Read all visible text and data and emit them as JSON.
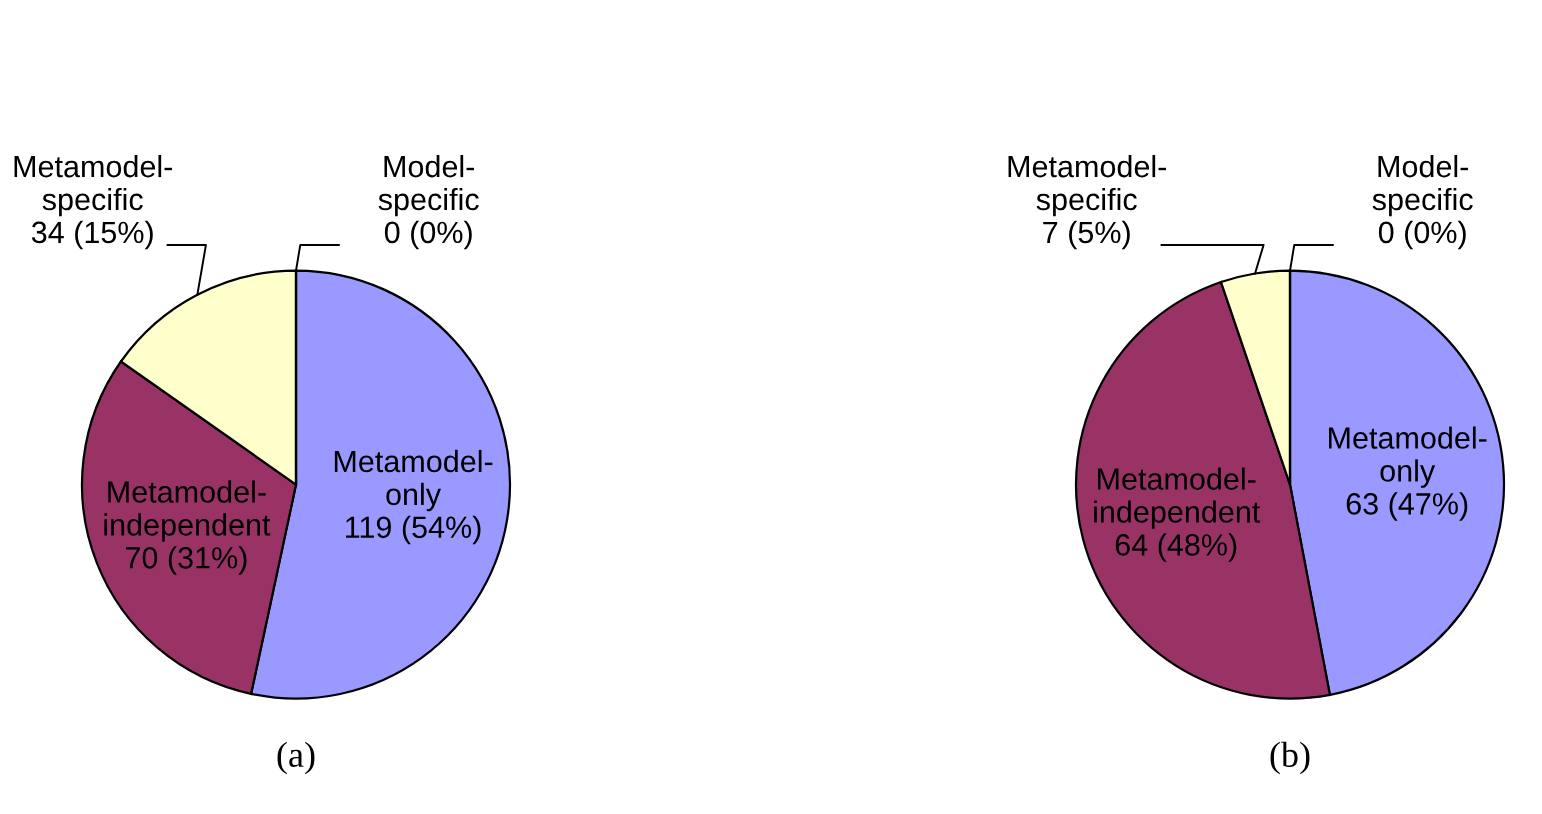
{
  "chart_data": [
    {
      "type": "pie",
      "title": "(a)",
      "categories": [
        "Metamodel-\nonly",
        "Metamodel-\nindependent",
        "Metamodel-\nspecific",
        "Model-\nspecific"
      ],
      "values": [
        119,
        70,
        34,
        0
      ],
      "value_labels": [
        "119 (54%)",
        "70 (31%)",
        "34 (15%)",
        "0 (0%)"
      ],
      "colors": [
        "#9999ff",
        "#993366",
        "#ffffcc",
        "#ffffcc"
      ]
    },
    {
      "type": "pie",
      "title": "(b)",
      "categories": [
        "Metamodel-\nonly",
        "Metamodel-\nindependent",
        "Metamodel-\nspecific",
        "Model-\nspecific"
      ],
      "values": [
        63,
        64,
        7,
        0
      ],
      "value_labels": [
        "63 (47%)",
        "64 (48%)",
        "7 (5%)",
        "0 (0%)"
      ],
      "colors": [
        "#9999ff",
        "#993366",
        "#ffffcc",
        "#ffffcc"
      ]
    }
  ]
}
